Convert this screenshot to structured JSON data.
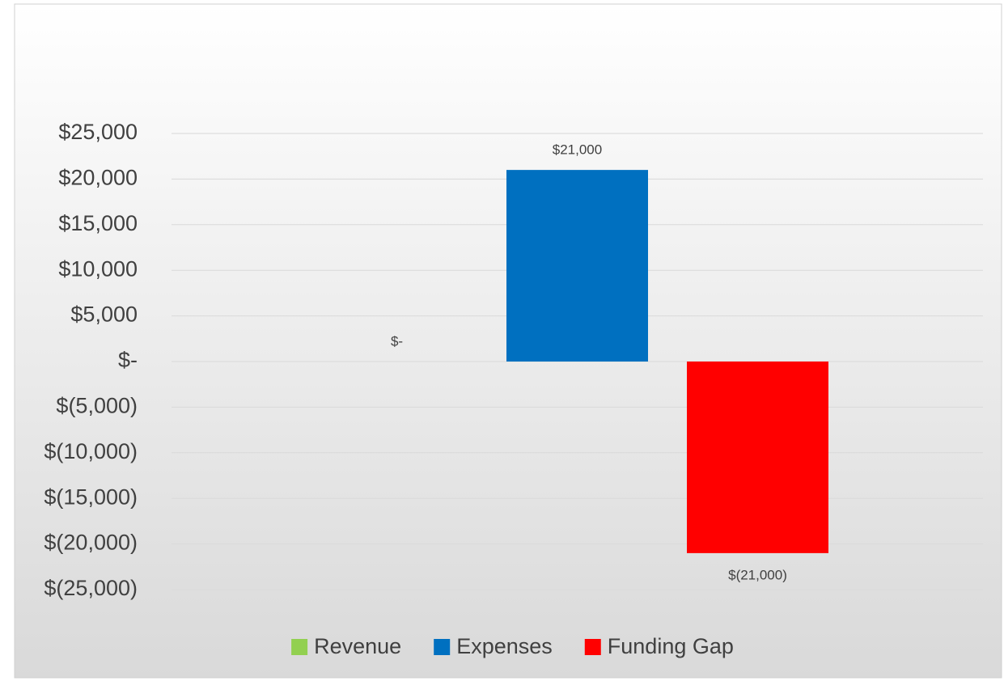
{
  "chart_data": {
    "type": "bar",
    "categories": [
      null
    ],
    "series": [
      {
        "name": "Revenue",
        "color": "#92d050",
        "values": [
          0
        ],
        "value_labels": [
          "$-"
        ]
      },
      {
        "name": "Expenses",
        "color": "#0070c0",
        "values": [
          21000
        ],
        "value_labels": [
          "$21,000"
        ]
      },
      {
        "name": "Funding Gap",
        "color": "#ff0000",
        "values": [
          -21000
        ],
        "value_labels": [
          "$(21,000)"
        ]
      }
    ],
    "ylim": [
      -25000,
      25000
    ],
    "yticks": [
      {
        "value": -25000,
        "label": "$(25,000)"
      },
      {
        "value": -20000,
        "label": "$(20,000)"
      },
      {
        "value": -15000,
        "label": "$(15,000)"
      },
      {
        "value": -10000,
        "label": "$(10,000)"
      },
      {
        "value": -5000,
        "label": "$(5,000)"
      },
      {
        "value": 0,
        "label": "$-"
      },
      {
        "value": 5000,
        "label": "$5,000"
      },
      {
        "value": 10000,
        "label": "$10,000"
      },
      {
        "value": 15000,
        "label": "$15,000"
      },
      {
        "value": 20000,
        "label": "$20,000"
      },
      {
        "value": 25000,
        "label": "$25,000"
      }
    ],
    "grid": true,
    "legend": "bottom"
  }
}
